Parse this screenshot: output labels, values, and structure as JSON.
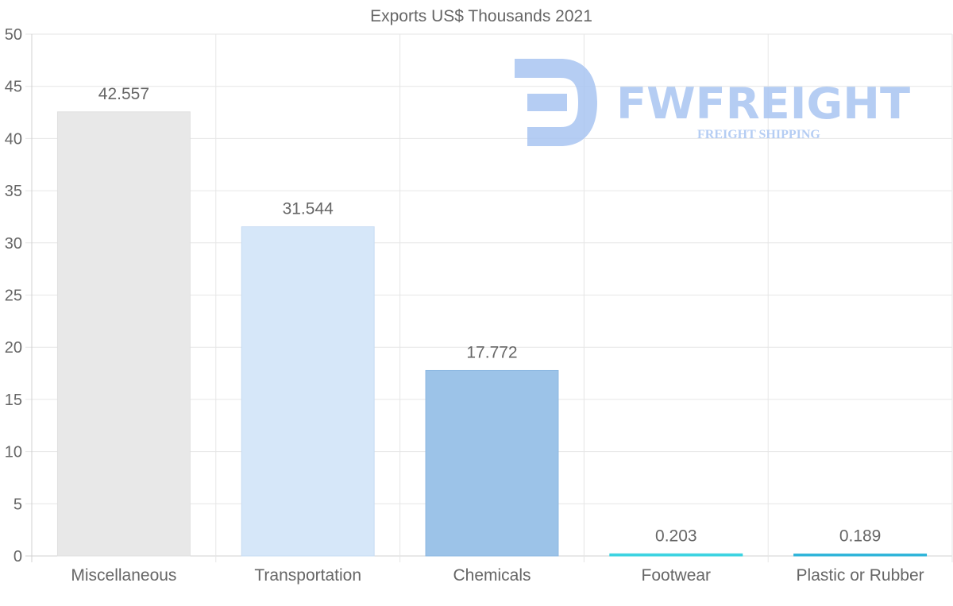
{
  "chart_data": {
    "type": "bar",
    "title": "Exports US$ Thousands 2021",
    "xlabel": "",
    "ylabel": "",
    "ylim": [
      0,
      50
    ],
    "yticks": [
      0,
      5,
      10,
      15,
      20,
      25,
      30,
      35,
      40,
      45,
      50
    ],
    "categories": [
      "Miscellaneous",
      "Transportation",
      "Chemicals",
      "Footwear",
      "Plastic or Rubber"
    ],
    "values": [
      42.557,
      31.544,
      17.772,
      0.203,
      0.189
    ],
    "value_labels": [
      "42.557",
      "31.544",
      "17.772",
      "0.203",
      "0.189"
    ],
    "bar_colors": [
      "#e8e8e8",
      "#d6e7f9",
      "#9cc3e8",
      "#44d6e4",
      "#35b9dc"
    ],
    "bar_border_colors": [
      "#e0e0e0",
      "#c7dcf3",
      "#8db8e2",
      "#2fd0de",
      "#28b0d6"
    ],
    "grid": true,
    "legend": "none"
  },
  "watermark": {
    "brand": "FWFREIGHT",
    "tagline": "FREIGHT SHIPPING",
    "color": "#a9c5f2"
  },
  "colors": {
    "text": "#666666",
    "grid": "#e6e6e6",
    "axis": "#d0d0d0"
  }
}
